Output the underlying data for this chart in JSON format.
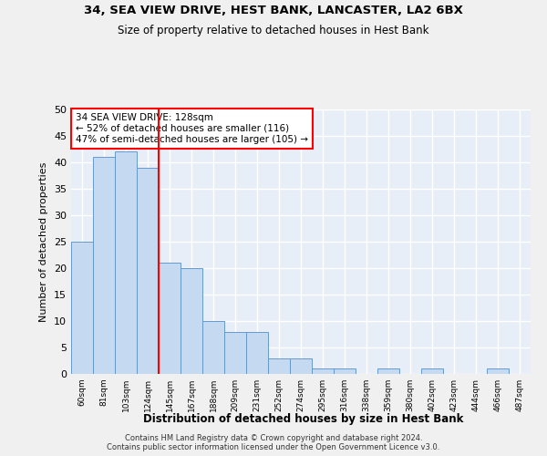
{
  "title": "34, SEA VIEW DRIVE, HEST BANK, LANCASTER, LA2 6BX",
  "subtitle": "Size of property relative to detached houses in Hest Bank",
  "xlabel": "Distribution of detached houses by size in Hest Bank",
  "ylabel": "Number of detached properties",
  "bar_color": "#c5d9f0",
  "bar_edge_color": "#6699cc",
  "categories": [
    "60sqm",
    "81sqm",
    "103sqm",
    "124sqm",
    "145sqm",
    "167sqm",
    "188sqm",
    "209sqm",
    "231sqm",
    "252sqm",
    "274sqm",
    "295sqm",
    "316sqm",
    "338sqm",
    "359sqm",
    "380sqm",
    "402sqm",
    "423sqm",
    "444sqm",
    "466sqm",
    "487sqm"
  ],
  "values": [
    25,
    41,
    42,
    39,
    21,
    20,
    10,
    8,
    8,
    3,
    3,
    1,
    1,
    0,
    1,
    0,
    1,
    0,
    0,
    1,
    0
  ],
  "annotation_line1": "34 SEA VIEW DRIVE: 128sqm",
  "annotation_line2": "← 52% of detached houses are smaller (116)",
  "annotation_line3": "47% of semi-detached houses are larger (105) →",
  "red_line_x": 3.5,
  "ylim": [
    0,
    50
  ],
  "yticks": [
    0,
    5,
    10,
    15,
    20,
    25,
    30,
    35,
    40,
    45,
    50
  ],
  "background_color": "#e8eef8",
  "grid_color": "#ffffff",
  "footer_line1": "Contains HM Land Registry data © Crown copyright and database right 2024.",
  "footer_line2": "Contains public sector information licensed under the Open Government Licence v3.0."
}
